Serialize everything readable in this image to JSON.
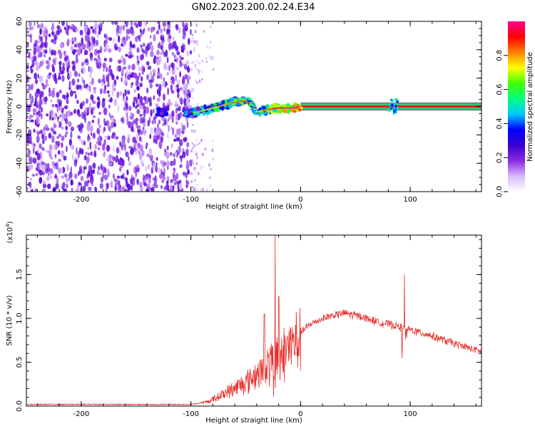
{
  "title": "GN02.2023.200.02.24.E34",
  "chart_data": [
    {
      "type": "heatmap",
      "title": "GN02.2023.200.02.24.E34",
      "xlabel": "Height of straight line (km)",
      "ylabel": "Frequency (Hz)",
      "xlim": [
        -250,
        165
      ],
      "ylim": [
        -60,
        60
      ],
      "x_ticks": [
        "-200",
        "-100",
        "0",
        "100"
      ],
      "y_ticks": [
        "60",
        "40",
        "20",
        "0",
        "-20",
        "-40",
        "-60"
      ],
      "colorbar": {
        "label": "Normalized spectral amplitude",
        "range": [
          0,
          1
        ],
        "ticks": [
          "0.0",
          "0.2",
          "0.4",
          "0.6",
          "0.8"
        ],
        "colors": [
          "#ffffff",
          "#d8b8ff",
          "#8a2be2",
          "#3a00d0",
          "#0000ff",
          "#00c8ff",
          "#00ff80",
          "#40ff00",
          "#ffff00",
          "#ff8000",
          "#ff0000",
          "#ff0090"
        ]
      },
      "description_of_features": {
        "noise_region_x": [
          -250,
          -100
        ],
        "sparse_noise_x": [
          -100,
          -80
        ],
        "signal_track": [
          {
            "x": -130,
            "y": -4,
            "amp": 0.35
          },
          {
            "x": -125,
            "y": -4,
            "amp": 0.35
          },
          {
            "x": -100,
            "y": -5,
            "amp": 0.4
          },
          {
            "x": -90,
            "y": -3,
            "amp": 0.45
          },
          {
            "x": -80,
            "y": -1,
            "amp": 0.5
          },
          {
            "x": -70,
            "y": 1,
            "amp": 0.55
          },
          {
            "x": -60,
            "y": 3,
            "amp": 0.6
          },
          {
            "x": -52,
            "y": 4,
            "amp": 0.6
          },
          {
            "x": -45,
            "y": 2,
            "amp": 0.55
          },
          {
            "x": -40,
            "y": -4,
            "amp": 0.45
          },
          {
            "x": -30,
            "y": -2,
            "amp": 0.6
          },
          {
            "x": -20,
            "y": -1,
            "amp": 0.7
          },
          {
            "x": -10,
            "y": -1,
            "amp": 0.75
          },
          {
            "x": 0,
            "y": 0,
            "amp": 0.85
          },
          {
            "x": 20,
            "y": 0,
            "amp": 0.95
          },
          {
            "x": 80,
            "y": 0,
            "amp": 0.95
          },
          {
            "x": 165,
            "y": 0,
            "amp": 0.95
          }
        ]
      }
    },
    {
      "type": "line",
      "xlabel": "Height of straight line (km)",
      "ylabel": "SNR (10 * v/v)",
      "y_scale_note": "(x10^4)",
      "xlim": [
        -250,
        165
      ],
      "ylim": [
        0,
        1.95
      ],
      "x_ticks": [
        "-200",
        "-100",
        "0",
        "100"
      ],
      "y_ticks": [
        "0.0",
        "0.5",
        "1.0",
        "1.5"
      ],
      "series": [
        {
          "color": "#e8302c",
          "envelope": [
            {
              "x": -250,
              "y": 0.02
            },
            {
              "x": -150,
              "y": 0.02
            },
            {
              "x": -100,
              "y": 0.02
            },
            {
              "x": -85,
              "y": 0.05
            },
            {
              "x": -75,
              "y": 0.12
            },
            {
              "x": -60,
              "y": 0.22
            },
            {
              "x": -45,
              "y": 0.35
            },
            {
              "x": -30,
              "y": 0.5
            },
            {
              "x": -20,
              "y": 0.6
            },
            {
              "x": -10,
              "y": 0.75
            },
            {
              "x": 0,
              "y": 0.85
            },
            {
              "x": 10,
              "y": 0.95
            },
            {
              "x": 25,
              "y": 1.03
            },
            {
              "x": 40,
              "y": 1.07
            },
            {
              "x": 55,
              "y": 1.03
            },
            {
              "x": 70,
              "y": 0.97
            },
            {
              "x": 85,
              "y": 0.93
            },
            {
              "x": 100,
              "y": 0.88
            },
            {
              "x": 120,
              "y": 0.81
            },
            {
              "x": 140,
              "y": 0.72
            },
            {
              "x": 165,
              "y": 0.63
            }
          ],
          "spikes": [
            {
              "x": -23,
              "y": 1.95
            },
            {
              "x": -20,
              "y": 1.25
            },
            {
              "x": -33,
              "y": 1.05
            },
            {
              "x": 93,
              "y": 1.6
            },
            {
              "x": 95,
              "y": 1.5
            }
          ]
        }
      ]
    }
  ]
}
